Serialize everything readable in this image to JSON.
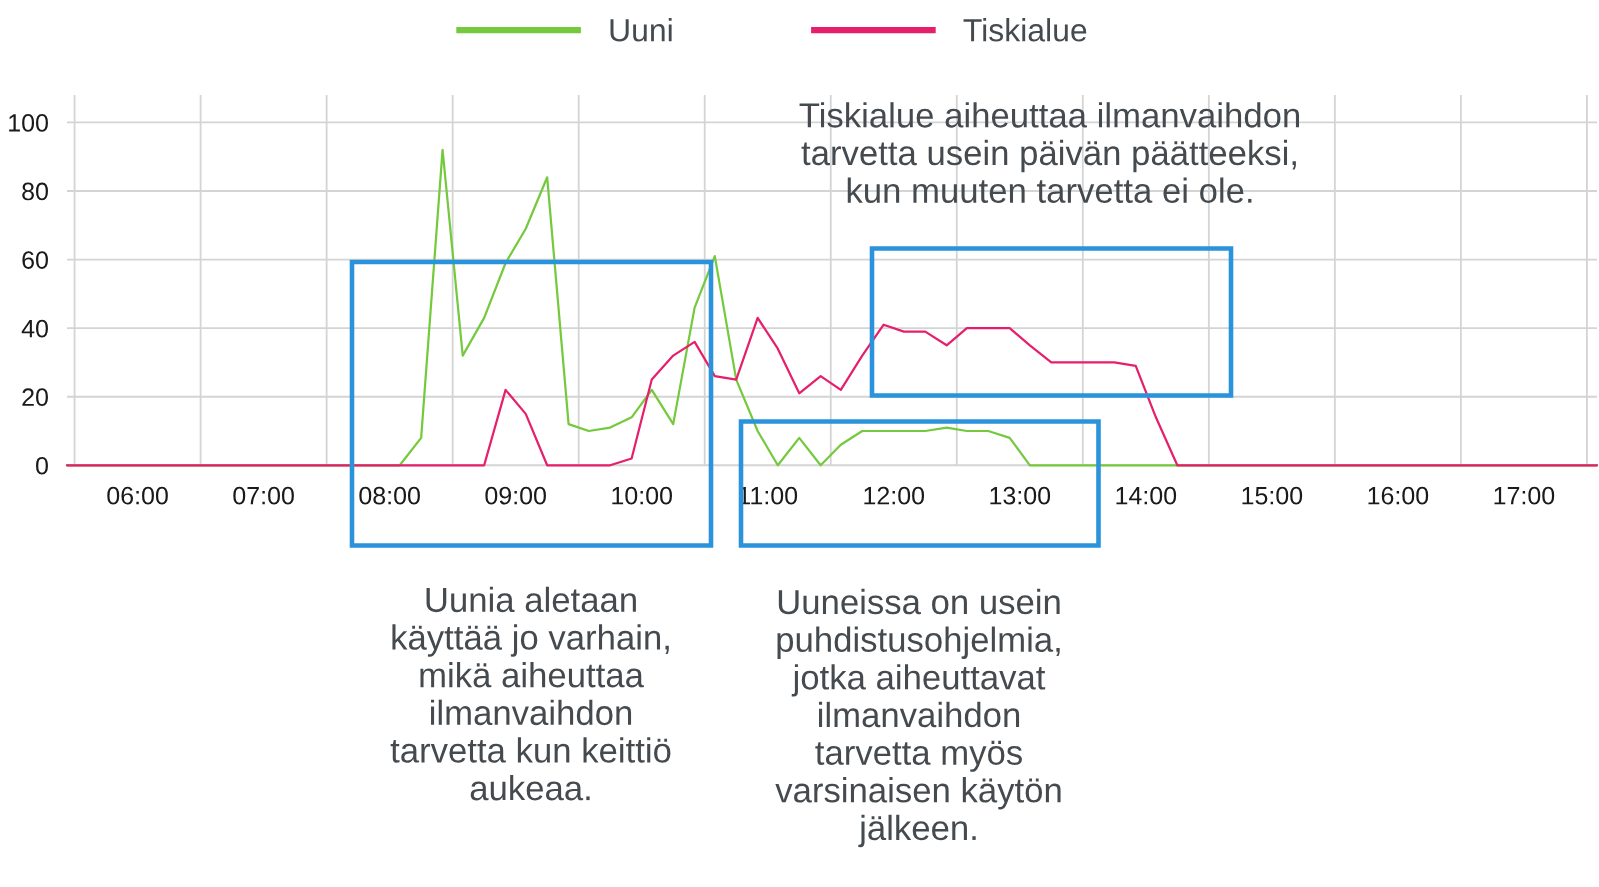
{
  "chart_data": {
    "type": "line",
    "xlim": [
      5.44,
      17.58
    ],
    "ylim": [
      0,
      108
    ],
    "xticks": [
      {
        "value": 5.5,
        "label": null
      },
      {
        "value": 6,
        "label": "06:00"
      },
      {
        "value": 6.5,
        "label": null
      },
      {
        "value": 7,
        "label": "07:00"
      },
      {
        "value": 7.5,
        "label": null
      },
      {
        "value": 8,
        "label": "08:00"
      },
      {
        "value": 8.5,
        "label": null
      },
      {
        "value": 9,
        "label": "09:00"
      },
      {
        "value": 9.5,
        "label": null
      },
      {
        "value": 10,
        "label": "10:00"
      },
      {
        "value": 10.5,
        "label": null
      },
      {
        "value": 11,
        "label": "11:00"
      },
      {
        "value": 11.5,
        "label": null
      },
      {
        "value": 12,
        "label": "12:00"
      },
      {
        "value": 12.5,
        "label": null
      },
      {
        "value": 13,
        "label": "13:00"
      },
      {
        "value": 13.5,
        "label": null
      },
      {
        "value": 14,
        "label": "14:00"
      },
      {
        "value": 14.5,
        "label": null
      },
      {
        "value": 15,
        "label": "15:00"
      },
      {
        "value": 15.5,
        "label": null
      },
      {
        "value": 16,
        "label": "16:00"
      },
      {
        "value": 16.5,
        "label": null
      },
      {
        "value": 17,
        "label": "17:00"
      },
      {
        "value": 17.5,
        "label": null
      }
    ],
    "yticks": [
      0,
      20,
      40,
      60,
      80,
      100
    ],
    "grid": true,
    "legend": "top",
    "series": [
      {
        "name": "Uuni",
        "color": "#74c93d",
        "x": [
          5.44,
          8.08,
          8.25,
          8.42,
          8.58,
          8.75,
          8.92,
          9.08,
          9.25,
          9.42,
          9.58,
          9.75,
          9.92,
          10.08,
          10.25,
          10.42,
          10.58,
          10.75,
          10.92,
          11.08,
          11.25,
          11.42,
          11.58,
          11.75,
          11.92,
          12.08,
          12.25,
          12.42,
          12.58,
          12.75,
          12.92,
          13.08,
          17.58
        ],
        "values": [
          0,
          0,
          8,
          92,
          32,
          43,
          59,
          69,
          84,
          12,
          10,
          11,
          14,
          22,
          12,
          46,
          61,
          25,
          10,
          0,
          8,
          0,
          6,
          10,
          10,
          10,
          10,
          11,
          10,
          10,
          8,
          0,
          0
        ]
      },
      {
        "name": "Tiskialue",
        "color": "#e61f6c",
        "x": [
          5.44,
          8.75,
          8.92,
          9.08,
          9.25,
          9.75,
          9.92,
          10.08,
          10.25,
          10.42,
          10.58,
          10.75,
          10.92,
          11.08,
          11.25,
          11.42,
          11.58,
          11.75,
          11.92,
          12.08,
          12.25,
          12.42,
          12.58,
          12.75,
          12.92,
          13.08,
          13.25,
          13.42,
          13.58,
          13.75,
          13.92,
          14.08,
          14.25,
          17.58
        ],
        "values": [
          0,
          0,
          22,
          15,
          0,
          0,
          2,
          25,
          32,
          36,
          26,
          25,
          43,
          34,
          21,
          26,
          22,
          32,
          41,
          39,
          39,
          35,
          40,
          40,
          40,
          35,
          30,
          30,
          30,
          30,
          29,
          14,
          0,
          0
        ]
      }
    ],
    "annotations": [
      "Tiskialue aiheuttaa ilmanvaihdon\ntarvetta usein päivän päätteeksi,\nkun muuten tarvetta ei ole.",
      "Uunia aletaan\nkäyttää jo varhain,\nmikä aiheuttaa\nilmanvaihdon\ntarvetta kun keittiö\naukeaa.",
      "Uuneissa on usein\npuhdistusohjelmia,\njotka aiheuttavat\nilmanvaihdon\ntarvetta myös\nvarsinaisen käytön\njälkeen."
    ]
  }
}
